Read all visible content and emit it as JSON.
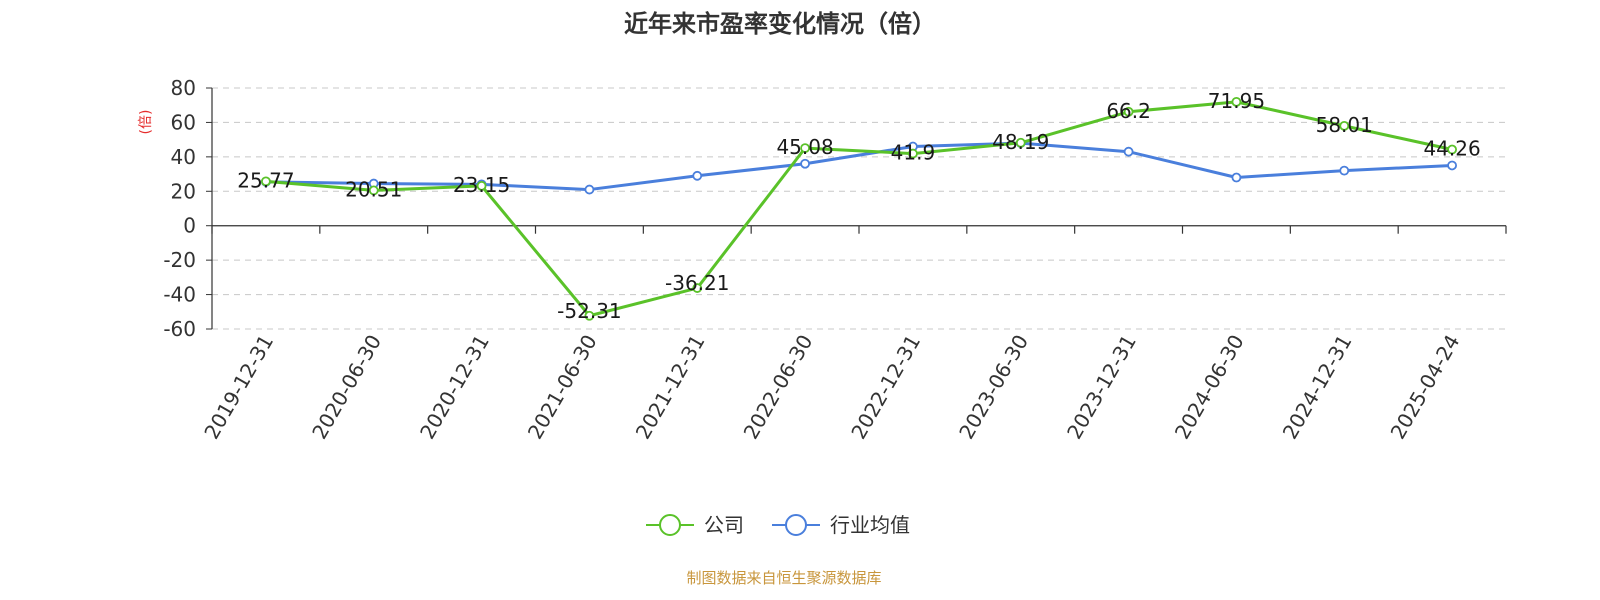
{
  "chart_data": {
    "type": "line",
    "title": "近年来市盈率变化情况（倍）",
    "ylabel": "(倍)",
    "xlabel": "",
    "categories": [
      "2019-12-31",
      "2020-06-30",
      "2020-12-31",
      "2021-06-30",
      "2021-12-31",
      "2022-06-30",
      "2022-12-31",
      "2023-06-30",
      "2023-12-31",
      "2024-06-30",
      "2024-12-31",
      "2025-04-24"
    ],
    "ylim": [
      -60,
      80
    ],
    "yticks": [
      80,
      60,
      40,
      20,
      0,
      -20,
      -40,
      -60
    ],
    "grid": true,
    "legend_position": "bottom-center",
    "series": [
      {
        "name": "公司",
        "color": "#5ac229",
        "values": [
          25.77,
          20.51,
          23.15,
          -52.31,
          -36.21,
          45.08,
          41.9,
          48.19,
          66.2,
          71.95,
          58.01,
          44.26
        ],
        "labels": [
          "25.77",
          "20.51",
          "23.15",
          "-52.31",
          "-36.21",
          "45.08",
          "41.9",
          "48.19",
          "66.2",
          "71.95",
          "58.01",
          "44.26"
        ]
      },
      {
        "name": "行业均值",
        "color": "#4a7fdc",
        "values": [
          25.5,
          24.5,
          24.0,
          21.0,
          29.0,
          36.0,
          46.0,
          48.0,
          43.0,
          28.0,
          32.0,
          35.0
        ]
      }
    ],
    "source": "制图数据来自恒生聚源数据库"
  }
}
